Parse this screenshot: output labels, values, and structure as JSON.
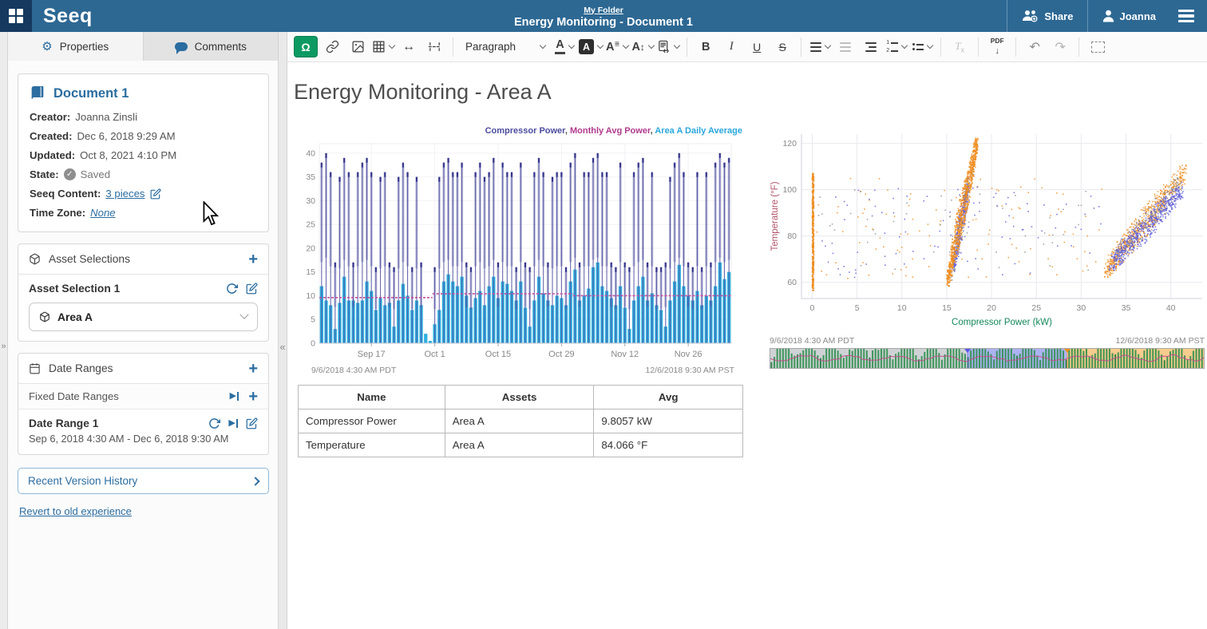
{
  "header": {
    "brand": "Seeq",
    "breadcrumb": "My Folder",
    "title": "Energy Monitoring - Document 1",
    "share_label": "Share",
    "user_name": "Joanna"
  },
  "colors": {
    "header_bg": "#2d6893",
    "accent_blue": "#2b6da0",
    "seeq_green": "#0d9a62"
  },
  "sidebar": {
    "tabs": {
      "properties": "Properties",
      "comments": "Comments"
    },
    "document": {
      "title": "Document 1",
      "creator_label": "Creator:",
      "creator_value": "Joanna Zinsli",
      "created_label": "Created:",
      "created_value": "Dec 6, 2018 9:29 AM",
      "updated_label": "Updated:",
      "updated_value": "Oct 8, 2021 4:10 PM",
      "state_label": "State:",
      "state_value": "Saved",
      "content_label": "Seeq Content:",
      "content_value": "3 pieces",
      "timezone_label": "Time Zone:",
      "timezone_value": "None"
    },
    "assets": {
      "header": "Asset Selections",
      "item_title": "Asset Selection 1",
      "dropdown_value": "Area A"
    },
    "dates": {
      "header": "Date Ranges",
      "group_label": "Fixed Date Ranges",
      "item_title": "Date Range 1",
      "item_range": "Sep 6, 2018 4:30 AM - Dec 6, 2018 9:30 AM"
    },
    "version_history": "Recent Version History",
    "revert_link": "Revert to old experience"
  },
  "toolbar": {
    "paragraph_label": "Paragraph",
    "font_letter": "A",
    "bold_label": "B",
    "italic_label": "I",
    "underline_label": "U",
    "strike_label": "S",
    "clear_label": "T",
    "pdf_label": "PDF"
  },
  "main": {
    "heading": "Energy Monitoring - Area A"
  },
  "summary_table": {
    "columns": [
      "Name",
      "Assets",
      "Avg"
    ],
    "rows": [
      [
        "Compressor Power",
        "Area A",
        "9.8057 kW"
      ],
      [
        "Temperature",
        "Area A",
        "84.066 °F"
      ]
    ]
  },
  "chart_data": [
    {
      "type": "bar",
      "legend": [
        {
          "label": "Compressor Power",
          "color": "#4c4c9e"
        },
        {
          "label": "Monthly Avg Power",
          "color": "#b03a8c"
        },
        {
          "label": "Area A Daily Average",
          "color": "#2aa7dc"
        }
      ],
      "ylim": [
        0,
        42
      ],
      "yticks": [
        0,
        5,
        10,
        15,
        20,
        25,
        30,
        35,
        40
      ],
      "bar_color": "#2fb0e0",
      "spike_color": "#5050a0",
      "spike_cap_color": "#32328a",
      "avg_color": "#c0509e",
      "daily_avg_bars": [
        12,
        9,
        8,
        3,
        8.5,
        14,
        9,
        9,
        8.5,
        9,
        13,
        11,
        7,
        9.5,
        8,
        8.5,
        3.5,
        9,
        12.5,
        10,
        7,
        9,
        8,
        2,
        0.5,
        4,
        7,
        13,
        14.5,
        13,
        12,
        14,
        10,
        7.5,
        9.5,
        11,
        8,
        12,
        14,
        9.5,
        13,
        12.5,
        11,
        9,
        13,
        7.5,
        3.5,
        9,
        14,
        10.5,
        9,
        8,
        10,
        9.5,
        8,
        13,
        15.5,
        9,
        10,
        11.5,
        16,
        17,
        12,
        11,
        9.5,
        8,
        12,
        7.5,
        3,
        9,
        12,
        14,
        9,
        10.5,
        8,
        7,
        3.5,
        9,
        13,
        16.5,
        12,
        10,
        9,
        11,
        8,
        10,
        9,
        12,
        17,
        13.5,
        15
      ],
      "compressor_spikes": [
        38,
        40,
        36,
        17,
        35,
        39,
        36,
        17,
        36,
        38,
        39,
        36,
        16,
        35,
        36,
        17,
        16,
        35,
        38,
        36,
        16,
        35,
        17,
        0,
        0,
        16,
        35,
        38,
        39,
        36,
        36,
        38,
        17,
        16,
        36,
        38,
        35,
        36,
        39,
        17,
        38,
        36,
        36,
        16,
        38,
        17,
        16,
        36,
        39,
        36,
        17,
        35,
        36,
        36,
        16,
        38,
        40,
        17,
        36,
        36,
        39,
        40,
        36,
        36,
        17,
        16,
        38,
        17,
        16,
        36,
        38,
        39,
        17,
        36,
        16,
        16,
        17,
        35,
        38,
        40,
        36,
        17,
        16,
        36,
        16,
        36,
        17,
        38,
        40,
        38,
        39
      ],
      "monthly_avg_segments": [
        {
          "from": 0,
          "to": 24,
          "value": 9.6
        },
        {
          "from": 25,
          "to": 55,
          "value": 10.4
        },
        {
          "from": 56,
          "to": 90,
          "value": 10.0
        }
      ],
      "xticks": [
        {
          "index": 11,
          "label": "Sep 17"
        },
        {
          "index": 25,
          "label": "Oct 1"
        },
        {
          "index": 39,
          "label": "Oct 15"
        },
        {
          "index": 53,
          "label": "Oct 29"
        },
        {
          "index": 67,
          "label": "Nov 12"
        },
        {
          "index": 81,
          "label": "Nov 26"
        }
      ],
      "footer_left": "9/6/2018 4:30 AM  PDT",
      "footer_right": "12/6/2018 9:30 AM  PST"
    },
    {
      "type": "scatter",
      "xlabel": "Compressor Power (kW)",
      "ylabel": "Temperature (°F)",
      "xlabel_color": "#15885a",
      "ylabel_color": "#b05468",
      "xlim": [
        -1.2,
        43.5
      ],
      "ylim": [
        53,
        124
      ],
      "xticks": [
        0,
        5,
        10,
        15,
        20,
        25,
        30,
        35,
        40
      ],
      "yticks": [
        60,
        80,
        100,
        120
      ],
      "seed": 42,
      "clusters": [
        {
          "name": "background-orange",
          "color": "#ef8c1e",
          "count": 110,
          "type": "uniform",
          "x": [
            0.4,
            32.5
          ],
          "y": [
            61,
            105
          ]
        },
        {
          "name": "background-blue",
          "color": "#5c5cd8",
          "count": 100,
          "type": "uniform",
          "x": [
            0.4,
            32.5
          ],
          "y": [
            62,
            102
          ]
        },
        {
          "name": "background-gray",
          "color": "#909090",
          "count": 55,
          "type": "uniform",
          "x": [
            0.6,
            31
          ],
          "y": [
            64,
            100
          ]
        },
        {
          "name": "zero-power-column",
          "color": "#ef8c1e",
          "count": 420,
          "type": "uniform",
          "x": [
            0.0,
            0.18
          ],
          "y": [
            56.5,
            107
          ]
        },
        {
          "name": "mid-ramp-gray",
          "color": "#909090",
          "count": 120,
          "type": "line",
          "x0": 15.4,
          "y0": 62,
          "x1": 18.0,
          "y1": 112,
          "xj": 0.4,
          "yj": 3
        },
        {
          "name": "mid-ramp-blue",
          "color": "#5c5cd8",
          "count": 300,
          "type": "line",
          "x0": 15.8,
          "y0": 67,
          "x1": 17.4,
          "y1": 103,
          "xj": 0.32,
          "yj": 3
        },
        {
          "name": "mid-ramp-orange",
          "color": "#ef8c1e",
          "count": 850,
          "type": "line",
          "x0": 15.1,
          "y0": 59.5,
          "x1": 18.4,
          "y1": 121,
          "xj": 0.5,
          "yj": 2.5
        },
        {
          "name": "high-ramp-orange",
          "color": "#ef8c1e",
          "count": 650,
          "type": "line",
          "x0": 32.8,
          "y0": 65,
          "x1": 41.6,
          "y1": 108,
          "xj": 1.0,
          "yj": 3.5
        },
        {
          "name": "high-ramp-gray",
          "color": "#909090",
          "count": 170,
          "type": "line",
          "x0": 33.8,
          "y0": 70,
          "x1": 41.0,
          "y1": 103,
          "xj": 0.9,
          "yj": 3.5
        },
        {
          "name": "high-ramp-blue",
          "color": "#5c5cd8",
          "count": 500,
          "type": "line",
          "x0": 33.4,
          "y0": 68,
          "x1": 41.2,
          "y1": 100,
          "xj": 0.9,
          "yj": 3.5
        }
      ],
      "footer_left": "9/6/2018 4:30 AM  PDT",
      "footer_right": "12/6/2018 9:30 AM  PST"
    },
    {
      "type": "timeline-strip",
      "seed": 7,
      "regions": [
        {
          "color": "#c3c7cb",
          "pct": 45.5
        },
        {
          "color": "#98a0ef",
          "pct": 23
        },
        {
          "color": "#f5bf72",
          "pct": 31.5
        }
      ],
      "markers": [
        {
          "pct": 45.5,
          "color": "#5858e8"
        },
        {
          "pct": 68.5,
          "color": "#f09020"
        }
      ],
      "bar_color": "#2e8f4d",
      "bar_dark_color": "#1d7a3c",
      "wave_color": "#c2508e",
      "bar_count": 150
    }
  ]
}
